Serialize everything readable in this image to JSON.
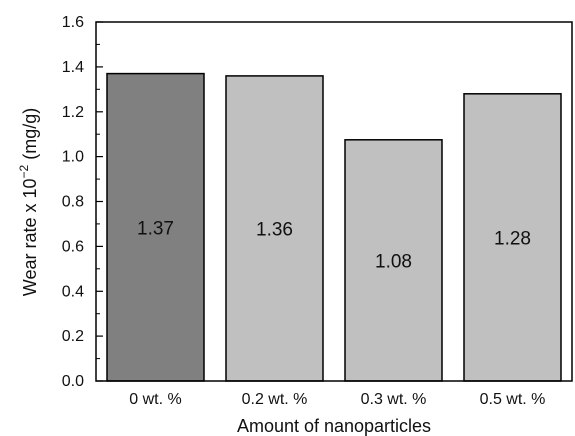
{
  "chart_data": {
    "type": "bar",
    "categories": [
      "0 wt. %",
      "0.2 wt. %",
      "0.3 wt. %",
      "0.5 wt. %"
    ],
    "values": [
      1.37,
      1.36,
      1.075,
      1.28
    ],
    "data_labels": [
      "1.37",
      "1.36",
      "1.08",
      "1.28"
    ],
    "bar_colors": [
      "#808080",
      "#c0c0c0",
      "#c0c0c0",
      "#c0c0c0"
    ],
    "xlabel": "Amount of nanoparticles",
    "ylabel": {
      "prefix": "Wear rate x 10",
      "exponent": "−2",
      "suffix": " (mg/g)"
    },
    "ylim": [
      0.0,
      1.6
    ],
    "yticks": [
      "0.0",
      "0.2",
      "0.4",
      "0.6",
      "0.8",
      "1.0",
      "1.2",
      "1.4",
      "1.6"
    ],
    "grid": false,
    "legend": "none"
  }
}
